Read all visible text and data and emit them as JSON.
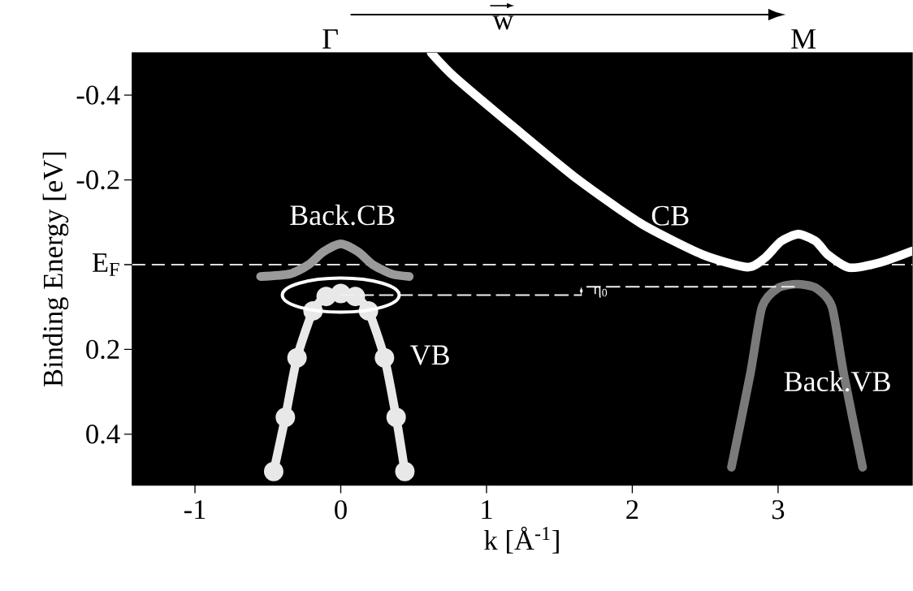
{
  "chart_data": {
    "type": "line",
    "xlabel": "k [Å$^{-1}$]",
    "ylabel": "Binding Energy [eV]",
    "xlim": [
      -1.43,
      3.92
    ],
    "ylim": [
      0.52,
      -0.5
    ],
    "xticks": [
      -1,
      0,
      1,
      2,
      3
    ],
    "yticks": [
      -0.4,
      -0.2,
      {
        "value": 0,
        "label": "E$_{F}$"
      },
      0.2,
      0.4
    ],
    "series": [
      {
        "color": "#ffffff",
        "x": [
          0.62,
          0.78,
          1.21,
          1.63,
          2.06,
          2.48,
          2.79,
          2.91,
          3.02,
          3.14,
          3.26,
          3.34,
          3.49,
          3.7,
          3.92
        ],
        "values": [
          -0.5,
          -0.443,
          -0.318,
          -0.2,
          -0.097,
          -0.024,
          0.006,
          -0.016,
          -0.055,
          -0.072,
          -0.055,
          -0.024,
          0.007,
          -0.005,
          -0.032
        ]
      },
      {
        "color": "#9a9a9a",
        "x": [
          -0.55,
          -0.35,
          -0.22,
          -0.12,
          0,
          0.12,
          0.22,
          0.35,
          0.47
        ],
        "values": [
          0.028,
          0.022,
          0.0,
          -0.03,
          -0.049,
          -0.03,
          0.0,
          0.022,
          0.028
        ]
      },
      {
        "color": "#e8e8e8",
        "marker": "circle",
        "x": [
          -0.46,
          -0.38,
          -0.3,
          -0.19,
          -0.1,
          0,
          0.1,
          0.19,
          0.3,
          0.38,
          0.44
        ],
        "values": [
          0.488,
          0.36,
          0.22,
          0.109,
          0.075,
          0.068,
          0.075,
          0.109,
          0.22,
          0.36,
          0.488
        ]
      },
      {
        "color": "#7a7a7a",
        "x": [
          2.68,
          2.81,
          2.89,
          3.0,
          3.13,
          3.26,
          3.37,
          3.45,
          3.58
        ],
        "values": [
          0.478,
          0.257,
          0.1,
          0.055,
          0.046,
          0.055,
          0.1,
          0.257,
          0.478
        ]
      },
      {
        "color": "#f0f0f0",
        "line_style": "dashed",
        "x": [
          0,
          1.65
        ],
        "values": [
          0.072,
          0.072
        ]
      },
      {
        "color": "#f0f0f0",
        "line_style": "dashed",
        "x": [
          1.69,
          3.11
        ],
        "values": [
          0.052,
          0.052
        ]
      }
    ],
    "ref_lines": [
      {
        "axis": "y",
        "value": 0,
        "color": "#dddddd",
        "line_style": "dashed"
      }
    ],
    "annotations": [
      "Back.CB",
      "VB",
      "CB",
      "Back.VB",
      "η$_{0}$",
      "Γ",
      "w",
      "M"
    ]
  }
}
